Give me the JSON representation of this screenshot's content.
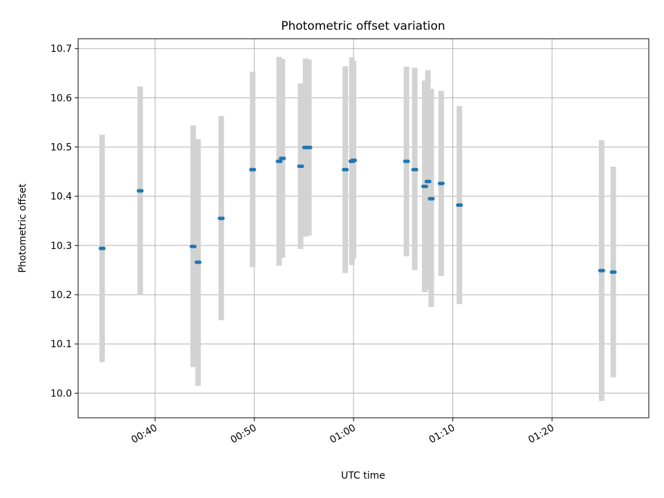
{
  "chart_data": {
    "type": "scatter",
    "title": "Photometric offset variation",
    "xlabel": "UTC time",
    "ylabel": "Photometric offset",
    "grid": true,
    "xlim": [
      "00:32:15",
      "01:29:45"
    ],
    "ylim": [
      9.95,
      10.72
    ],
    "x_ticks": [
      "00:40",
      "00:50",
      "01:00",
      "01:10",
      "01:20"
    ],
    "y_ticks": [
      10.0,
      10.1,
      10.2,
      10.3,
      10.4,
      10.5,
      10.6,
      10.7
    ],
    "y_tick_labels": [
      "10.0",
      "10.1",
      "10.2",
      "10.3",
      "10.4",
      "10.5",
      "10.6",
      "10.7"
    ],
    "colors": {
      "points": "#1f77b4",
      "error_bars": "#d3d3d3",
      "grid": "#b0b0b0"
    },
    "series": [
      {
        "points": [
          {
            "x": "00:34:40",
            "y": 10.294,
            "ymin": 10.063,
            "ymax": 10.525
          },
          {
            "x": "00:38:30",
            "y": 10.411,
            "ymin": 10.199,
            "ymax": 10.623
          },
          {
            "x": "00:43:50",
            "y": 10.298,
            "ymin": 10.053,
            "ymax": 10.544
          },
          {
            "x": "00:44:20",
            "y": 10.266,
            "ymin": 10.015,
            "ymax": 10.516
          },
          {
            "x": "00:46:40",
            "y": 10.355,
            "ymin": 10.148,
            "ymax": 10.563
          },
          {
            "x": "00:49:50",
            "y": 10.454,
            "ymin": 10.256,
            "ymax": 10.653
          },
          {
            "x": "00:52:30",
            "y": 10.471,
            "ymin": 10.259,
            "ymax": 10.683
          },
          {
            "x": "00:52:50",
            "y": 10.477,
            "ymin": 10.275,
            "ymax": 10.679
          },
          {
            "x": "00:54:40",
            "y": 10.461,
            "ymin": 10.293,
            "ymax": 10.629
          },
          {
            "x": "00:55:10",
            "y": 10.499,
            "ymin": 10.318,
            "ymax": 10.68
          },
          {
            "x": "00:55:30",
            "y": 10.499,
            "ymin": 10.32,
            "ymax": 10.678
          },
          {
            "x": "00:59:10",
            "y": 10.454,
            "ymin": 10.244,
            "ymax": 10.664
          },
          {
            "x": "00:59:50",
            "y": 10.471,
            "ymin": 10.26,
            "ymax": 10.682
          },
          {
            "x": "01:00:00",
            "y": 10.473,
            "ymin": 10.274,
            "ymax": 10.675
          },
          {
            "x": "01:05:20",
            "y": 10.471,
            "ymin": 10.278,
            "ymax": 10.663
          },
          {
            "x": "01:06:10",
            "y": 10.454,
            "ymin": 10.25,
            "ymax": 10.661
          },
          {
            "x": "01:07:10",
            "y": 10.42,
            "ymin": 10.205,
            "ymax": 10.635
          },
          {
            "x": "01:07:30",
            "y": 10.43,
            "ymin": 10.21,
            "ymax": 10.656
          },
          {
            "x": "01:07:50",
            "y": 10.395,
            "ymin": 10.175,
            "ymax": 10.618
          },
          {
            "x": "01:08:50",
            "y": 10.426,
            "ymin": 10.238,
            "ymax": 10.614
          },
          {
            "x": "01:10:40",
            "y": 10.382,
            "ymin": 10.181,
            "ymax": 10.583
          },
          {
            "x": "01:25:00",
            "y": 10.249,
            "ymin": 9.984,
            "ymax": 10.514
          },
          {
            "x": "01:26:10",
            "y": 10.246,
            "ymin": 10.032,
            "ymax": 10.46
          }
        ]
      }
    ]
  }
}
